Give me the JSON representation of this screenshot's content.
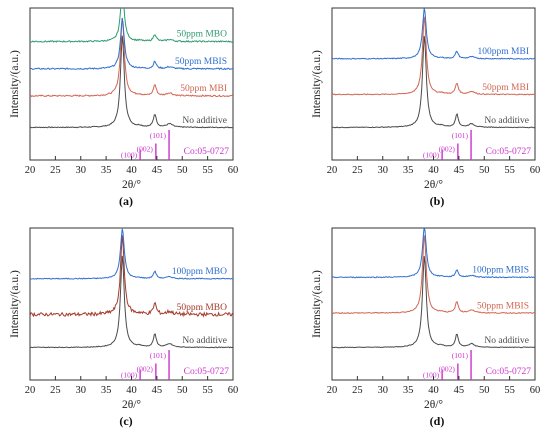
{
  "figure": {
    "panels_shown": 4
  },
  "chart_data": [
    {
      "type": "line",
      "panel_label": "(a)",
      "xlabel": "2θ/°",
      "ylabel": "Intensity/(a.u.)",
      "xlim": [
        20,
        60
      ],
      "xticks": [
        "20",
        "25",
        "30",
        "35",
        "40",
        "45",
        "50",
        "55",
        "60"
      ],
      "grid": false,
      "legend": "none",
      "series": [
        {
          "name": "50ppm MBO",
          "color": "#2e9a6e",
          "offset": 3.0,
          "noise": 0.012
        },
        {
          "name": "50ppm MBIS",
          "color": "#2f6fcf",
          "offset": 2.05,
          "noise": 0.012
        },
        {
          "name": "50ppm MBI",
          "color": "#d26652",
          "offset": 1.1,
          "noise": 0.012
        },
        {
          "name": "No additive",
          "color": "#4a4a4a",
          "offset": 0.0,
          "noise": 0.008
        }
      ],
      "reference": {
        "label": "Co:05-0727",
        "color": "#cc33cc",
        "lines": [
          {
            "two_theta": 41.7,
            "rel_intensity": 0.35,
            "hkl": "(100)"
          },
          {
            "two_theta": 44.8,
            "rel_intensity": 0.55,
            "hkl": "(002)"
          },
          {
            "two_theta": 47.4,
            "rel_intensity": 1.0,
            "hkl": "(101)"
          }
        ]
      }
    },
    {
      "type": "line",
      "panel_label": "(b)",
      "xlabel": "2θ/°",
      "ylabel": "Intensity/(a.u.)",
      "xlim": [
        20,
        60
      ],
      "xticks": [
        "20",
        "25",
        "30",
        "35",
        "40",
        "45",
        "50",
        "55",
        "60"
      ],
      "grid": false,
      "legend": "none",
      "series": [
        {
          "name": "100ppm MBI",
          "color": "#2f6fcf",
          "offset": 2.4,
          "noise": 0.008
        },
        {
          "name": "50ppm MBI",
          "color": "#d26652",
          "offset": 1.15,
          "noise": 0.008
        },
        {
          "name": "No additive",
          "color": "#4a4a4a",
          "offset": 0.0,
          "noise": 0.006
        }
      ],
      "reference": {
        "label": "Co:05-0727",
        "color": "#cc33cc",
        "lines": [
          {
            "two_theta": 41.7,
            "rel_intensity": 0.35,
            "hkl": "(100)"
          },
          {
            "two_theta": 44.8,
            "rel_intensity": 0.55,
            "hkl": "(002)"
          },
          {
            "two_theta": 47.4,
            "rel_intensity": 1.0,
            "hkl": "(101)"
          }
        ]
      }
    },
    {
      "type": "line",
      "panel_label": "(c)",
      "xlabel": "2θ/°",
      "ylabel": "Intensity/(a.u.)",
      "xlim": [
        20,
        60
      ],
      "xticks": [
        "20",
        "25",
        "30",
        "35",
        "40",
        "45",
        "50",
        "55",
        "60"
      ],
      "grid": false,
      "legend": "none",
      "series": [
        {
          "name": "100ppm MBO",
          "color": "#2f6fcf",
          "offset": 2.4,
          "noise": 0.008
        },
        {
          "name": "50ppm MBO",
          "color": "#a33a2a",
          "offset": 1.15,
          "noise": 0.03
        },
        {
          "name": "No additive",
          "color": "#4a4a4a",
          "offset": 0.0,
          "noise": 0.006
        }
      ],
      "reference": {
        "label": "Co:05-0727",
        "color": "#cc33cc",
        "lines": [
          {
            "two_theta": 41.7,
            "rel_intensity": 0.35,
            "hkl": "(100)"
          },
          {
            "two_theta": 44.8,
            "rel_intensity": 0.55,
            "hkl": "(002)"
          },
          {
            "two_theta": 47.4,
            "rel_intensity": 1.0,
            "hkl": "(101)"
          }
        ]
      }
    },
    {
      "type": "line",
      "panel_label": "(d)",
      "xlabel": "2θ/°",
      "ylabel": "Intensity/(a.u.)",
      "xlim": [
        20,
        60
      ],
      "xticks": [
        "20",
        "25",
        "30",
        "35",
        "40",
        "45",
        "50",
        "55",
        "60"
      ],
      "grid": false,
      "legend": "none",
      "series": [
        {
          "name": "100ppm MBIS",
          "color": "#2f6fcf",
          "offset": 2.45,
          "noise": 0.008
        },
        {
          "name": "50ppm MBIS",
          "color": "#d26652",
          "offset": 1.2,
          "noise": 0.008
        },
        {
          "name": "No additive",
          "color": "#4a4a4a",
          "offset": 0.0,
          "noise": 0.006
        }
      ],
      "reference": {
        "label": "Co:05-0727",
        "color": "#cc33cc",
        "lines": [
          {
            "two_theta": 41.7,
            "rel_intensity": 0.35,
            "hkl": "(100)"
          },
          {
            "two_theta": 44.8,
            "rel_intensity": 0.55,
            "hkl": "(002)"
          },
          {
            "two_theta": 47.4,
            "rel_intensity": 1.0,
            "hkl": "(101)"
          }
        ]
      }
    }
  ]
}
